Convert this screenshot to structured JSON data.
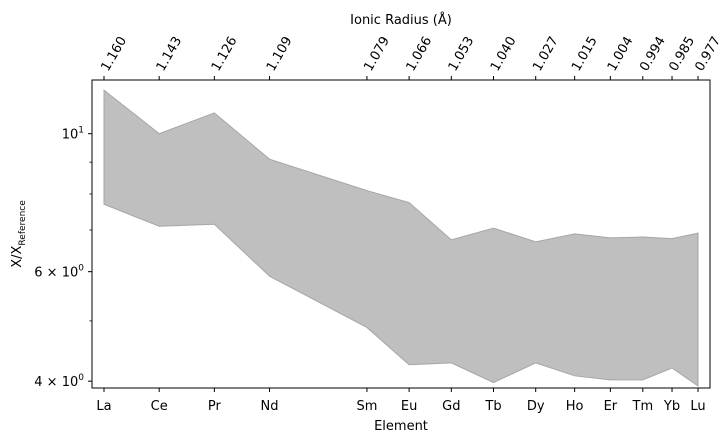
{
  "chart_data": {
    "type": "area",
    "top_axis_title": "Ionic Radius (Å)",
    "xlabel": "Element",
    "ylabel_main": "X/X",
    "ylabel_sub": "Reference",
    "yscale": "log",
    "ylim": [
      3.9,
      12.2
    ],
    "grid": false,
    "legend": "none",
    "fill_color": "#bfbfbf",
    "edge_color": "#a6a6a6",
    "categories": [
      "La",
      "Ce",
      "Pr",
      "Nd",
      "Sm",
      "Eu",
      "Gd",
      "Tb",
      "Dy",
      "Ho",
      "Er",
      "Tm",
      "Yb",
      "Lu"
    ],
    "ionic_radius_labels": [
      "1.160",
      "1.143",
      "1.126",
      "1.109",
      "1.079",
      "1.066",
      "1.053",
      "1.040",
      "1.027",
      "1.015",
      "1.004",
      "0.994",
      "0.985",
      "0.977"
    ],
    "ionic_radius": [
      1.16,
      1.143,
      1.126,
      1.109,
      1.079,
      1.066,
      1.053,
      1.04,
      1.027,
      1.015,
      1.004,
      0.994,
      0.985,
      0.977
    ],
    "upper": [
      11.75,
      10.0,
      10.8,
      9.1,
      8.1,
      7.75,
      6.75,
      7.05,
      6.7,
      6.9,
      6.8,
      6.82,
      6.78,
      6.92
    ],
    "lower": [
      7.7,
      7.1,
      7.15,
      5.9,
      4.88,
      4.25,
      4.28,
      3.98,
      4.28,
      4.08,
      4.02,
      4.02,
      4.2,
      3.93
    ],
    "y_ticks_major": [
      {
        "value": 10,
        "label": "10",
        "exp": "1"
      },
      {
        "value": 6,
        "label": "6 × 10",
        "exp": "0"
      },
      {
        "value": 4,
        "label": "4 × 10",
        "exp": "0"
      }
    ],
    "y_ticks_minor": [
      5,
      7,
      8,
      9
    ]
  }
}
